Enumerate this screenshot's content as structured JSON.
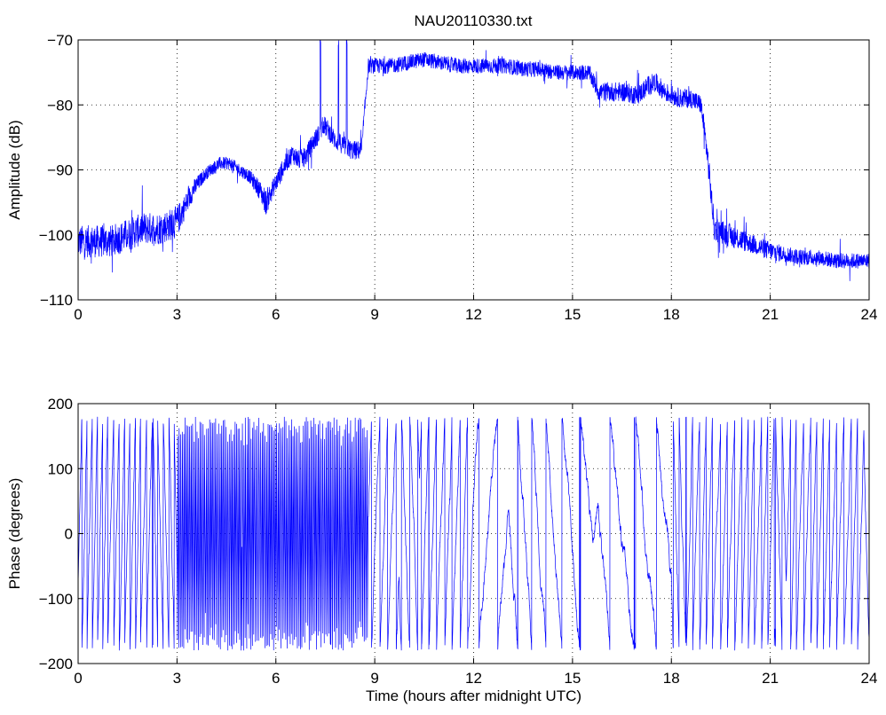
{
  "figure": {
    "title": "NAU20110330.txt",
    "series_color": "#0000ff",
    "background": "#ffffff"
  },
  "chart_data": [
    {
      "type": "line",
      "title": "NAU20110330.txt",
      "xlabel": "",
      "ylabel": "Amplitude (dB)",
      "xlim": [
        0,
        24
      ],
      "ylim": [
        -110,
        -70
      ],
      "xticks": [
        "0",
        "3",
        "6",
        "9",
        "12",
        "15",
        "18",
        "21",
        "24"
      ],
      "yticks": [
        "−110",
        "−100",
        "−90",
        "−80",
        "−70"
      ],
      "grid": true,
      "legend": "none",
      "series": [
        {
          "x": [
            0,
            0.5,
            1,
            1.5,
            2,
            2.5,
            3,
            3.2,
            3.5,
            3.8,
            4,
            4.3,
            4.6,
            4.9,
            5.2,
            5.5,
            5.7,
            5.9,
            6.1,
            6.3,
            6.5,
            6.7,
            6.9,
            7.1,
            7.3,
            7.45,
            7.6,
            7.8,
            8,
            8.3,
            8.6,
            8.8,
            9,
            9.5,
            10,
            10.5,
            11,
            11.5,
            12,
            12.5,
            13,
            13.5,
            14,
            14.5,
            15,
            15.5,
            15.8,
            16,
            16.5,
            17,
            17.3,
            17.5,
            17.8,
            18,
            18.3,
            18.6,
            18.9,
            19.1,
            19.3,
            19.5,
            20,
            20.5,
            21,
            21.5,
            22,
            22.5,
            23,
            23.5,
            24
          ],
          "values": [
            -101,
            -101,
            -101,
            -100,
            -99,
            -99,
            -98,
            -96,
            -93,
            -91,
            -90,
            -89,
            -89,
            -90,
            -91,
            -93,
            -95,
            -93,
            -91,
            -89,
            -87.5,
            -88.5,
            -88,
            -86,
            -84.5,
            -83,
            -84,
            -85.5,
            -86,
            -87,
            -87,
            -74,
            -74,
            -74,
            -73.5,
            -73,
            -73.5,
            -74,
            -74,
            -74,
            -74,
            -74.5,
            -74.5,
            -75,
            -75,
            -75,
            -78,
            -78,
            -78,
            -78.5,
            -77,
            -76.5,
            -78,
            -78.5,
            -79,
            -79,
            -80,
            -88,
            -99,
            -99.5,
            -100.5,
            -101.5,
            -102.5,
            -103,
            -103.5,
            -103.5,
            -104,
            -104,
            -104
          ],
          "noise_db": [
            2.5,
            2.5,
            2.5,
            2.5,
            2.5,
            2.5,
            2.5,
            2,
            1.5,
            1,
            1,
            1,
            1,
            1,
            1,
            1.5,
            2,
            1.5,
            1.5,
            1.5,
            1.5,
            1.5,
            1.5,
            1.5,
            1.5,
            1.5,
            1.5,
            1.5,
            1.5,
            1.5,
            1.5,
            1.2,
            1.2,
            1.2,
            1.2,
            1.2,
            1.2,
            1.2,
            1.2,
            1.2,
            1.2,
            1.2,
            1.2,
            1.2,
            1.2,
            1.2,
            1.5,
            1.5,
            1.5,
            1.5,
            1.5,
            1.5,
            1.5,
            1.5,
            1.5,
            1.5,
            1.5,
            2,
            2,
            1.8,
            1.8,
            1.5,
            1.5,
            1.2,
            1.2,
            1.2,
            1.2,
            1.2,
            1.2
          ],
          "spikes": [
            [
              7.35,
              -70.5
            ],
            [
              7.9,
              -71
            ],
            [
              8.15,
              -71
            ]
          ]
        }
      ]
    },
    {
      "type": "line",
      "title": "",
      "xlabel": "Time (hours after midnight UTC)",
      "ylabel": "Phase (degrees)",
      "xlim": [
        0,
        24
      ],
      "ylim": [
        -200,
        200
      ],
      "xticks": [
        "0",
        "3",
        "6",
        "9",
        "12",
        "15",
        "18",
        "21",
        "24"
      ],
      "yticks": [
        "−200",
        "−100",
        "0",
        "100",
        "200"
      ],
      "grid": true,
      "legend": "none",
      "series": [
        {
          "segments": [
            {
              "x0": 0,
              "x1": 3,
              "wrap_hz_per_hour": 6,
              "value_range": [
                -180,
                180
              ]
            },
            {
              "x0": 3,
              "x1": 8.8,
              "wrap_hz_per_hour": 22,
              "value_range": [
                -180,
                180
              ]
            },
            {
              "x0": 8.8,
              "x1": 12,
              "wrap_hz_per_hour": 4,
              "value_range": [
                -180,
                180
              ]
            },
            {
              "x0": 12,
              "x1": 15,
              "wrap_hz_per_hour": 2,
              "value_range": [
                -180,
                180
              ]
            },
            {
              "x0": 15,
              "x1": 18,
              "wrap_hz_per_hour": 1.5,
              "value_range": [
                -180,
                180
              ]
            },
            {
              "x0": 18,
              "x1": 24,
              "wrap_hz_per_hour": 5,
              "value_range": [
                -180,
                180
              ]
            }
          ]
        }
      ]
    }
  ]
}
